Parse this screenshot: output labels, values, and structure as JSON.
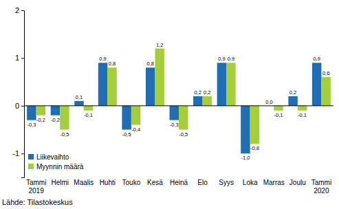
{
  "chart_data": {
    "type": "bar",
    "categories": [
      "Tammi 2019",
      "Helmi",
      "Maalis",
      "Huhti",
      "Touko",
      "Kesä",
      "Heinä",
      "Elo",
      "Syys",
      "Loka",
      "Marras",
      "Joulu",
      "Tammi 2020"
    ],
    "series": [
      {
        "name": "Liikevaihto",
        "color": "#1f6db3",
        "values": [
          -0.3,
          -0.2,
          0.1,
          0.9,
          -0.5,
          0.8,
          -0.3,
          0.2,
          0.9,
          -1.0,
          0.0,
          0.2,
          0.9
        ],
        "value_labels": [
          "-0,3",
          "-0,2",
          "0,1",
          "0,9",
          "-0,5",
          "0,8",
          "-0,3",
          "0,2",
          "0,9",
          "-1,0",
          "0,0",
          "0,2",
          "0,9"
        ]
      },
      {
        "name": "Myynnin määrä",
        "color": "#a5cf3a",
        "values": [
          -0.2,
          -0.5,
          -0.1,
          0.8,
          -0.4,
          1.2,
          -0.5,
          0.2,
          0.9,
          -0.8,
          -0.1,
          -0.1,
          0.6
        ],
        "value_labels": [
          "-0,2",
          "-0,5",
          "-0,1",
          "0,8",
          "-0,4",
          "1,2",
          "-0,5",
          "0,2",
          "0,9",
          "-0,8",
          "-0,1",
          "-0,1",
          "0,6"
        ]
      }
    ],
    "ylim": [
      -1.5,
      2
    ],
    "yticks": [
      -1,
      0,
      1,
      2
    ],
    "grid": false,
    "legend": "lower left",
    "data_labels": true,
    "annotations": [
      "Lähde: Tilastokeskus"
    ]
  }
}
